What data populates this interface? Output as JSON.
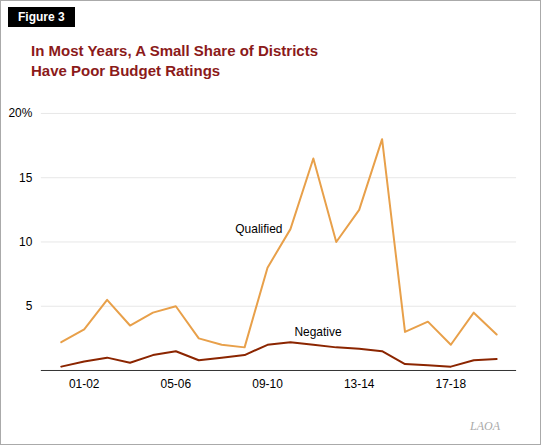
{
  "chart_data": {
    "type": "line",
    "title": "In Most Years, A Small Share of Districts\nHave Poor Budget Ratings",
    "categories": [
      null,
      "01-02",
      null,
      null,
      null,
      "05-06",
      null,
      null,
      null,
      "09-10",
      null,
      null,
      null,
      "13-14",
      null,
      null,
      null,
      "17-18",
      null,
      null
    ],
    "series": [
      {
        "name": "Qualified",
        "color": "#E8A04A",
        "values": [
          2.2,
          3.2,
          5.5,
          3.5,
          4.5,
          5.0,
          2.5,
          2.0,
          1.8,
          8.0,
          11.0,
          16.5,
          10.0,
          12.5,
          18.0,
          3.0,
          3.8,
          2.0,
          4.5,
          2.8
        ]
      },
      {
        "name": "Negative",
        "color": "#8B2500",
        "values": [
          0.3,
          0.7,
          1.0,
          0.6,
          1.2,
          1.5,
          0.8,
          1.0,
          1.2,
          2.0,
          2.2,
          2.0,
          1.8,
          1.7,
          1.5,
          0.5,
          0.4,
          0.3,
          0.8,
          0.9
        ]
      }
    ],
    "ylim": [
      0,
      20
    ],
    "yticks": [
      5,
      10,
      15,
      {
        "value": 20,
        "label": "20%"
      }
    ],
    "grid": true,
    "annotations": [
      "Figure 3",
      "LAOA"
    ]
  }
}
